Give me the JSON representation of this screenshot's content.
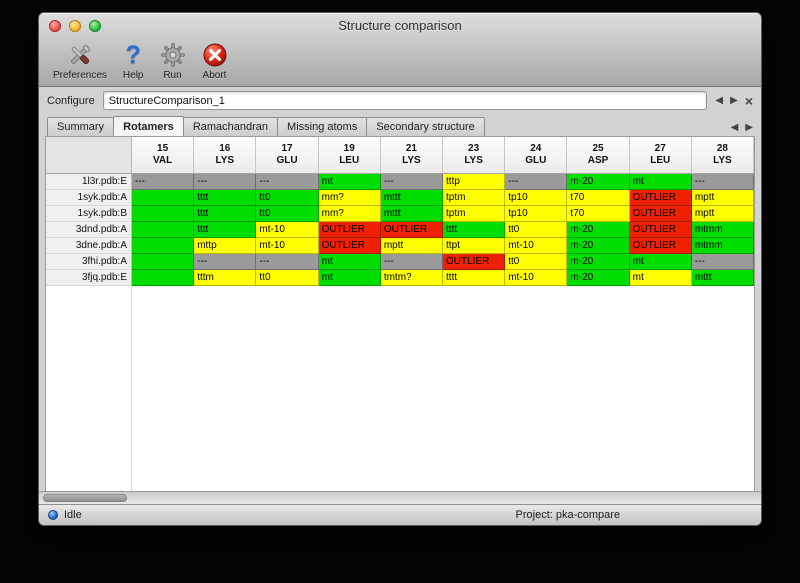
{
  "window": {
    "title": "Structure comparison"
  },
  "toolbar": {
    "items": [
      {
        "label": "Preferences"
      },
      {
        "label": "Help"
      },
      {
        "label": "Run"
      },
      {
        "label": "Abort"
      }
    ]
  },
  "configure": {
    "label": "Configure",
    "value": "StructureComparison_1"
  },
  "nav": {
    "back": "◀",
    "forward": "▶",
    "close": "×"
  },
  "tabs": {
    "items": [
      {
        "label": "Summary",
        "active": false
      },
      {
        "label": "Rotamers",
        "active": true
      },
      {
        "label": "Ramachandran",
        "active": false
      },
      {
        "label": "Missing atoms",
        "active": false
      },
      {
        "label": "Secondary structure",
        "active": false
      }
    ]
  },
  "table": {
    "colors": {
      "green": "#00dd00",
      "yellow": "#ffff00",
      "red": "#ee2200",
      "gray": "#9a9a9a"
    },
    "columns": [
      {
        "num": "15",
        "res": "VAL"
      },
      {
        "num": "16",
        "res": "LYS"
      },
      {
        "num": "17",
        "res": "GLU"
      },
      {
        "num": "19",
        "res": "LEU"
      },
      {
        "num": "21",
        "res": "LYS"
      },
      {
        "num": "23",
        "res": "LYS"
      },
      {
        "num": "24",
        "res": "GLU"
      },
      {
        "num": "25",
        "res": "ASP"
      },
      {
        "num": "27",
        "res": "LEU"
      },
      {
        "num": "28",
        "res": "LYS"
      }
    ],
    "rows": [
      {
        "label": "1l3r.pdb:E",
        "cells": [
          [
            "---",
            "gray"
          ],
          [
            "---",
            "gray"
          ],
          [
            "---",
            "gray"
          ],
          [
            "mt",
            "green"
          ],
          [
            "---",
            "gray"
          ],
          [
            "tttp",
            "yellow"
          ],
          [
            "---",
            "gray"
          ],
          [
            "m-20",
            "green"
          ],
          [
            "mt",
            "green"
          ],
          [
            "---",
            "gray"
          ]
        ]
      },
      {
        "label": "1syk.pdb:A",
        "cells": [
          [
            "",
            "green"
          ],
          [
            "tttt",
            "green"
          ],
          [
            "tt0",
            "green"
          ],
          [
            "mm?",
            "yellow"
          ],
          [
            "mttt",
            "green"
          ],
          [
            "tptm",
            "yellow"
          ],
          [
            "tp10",
            "yellow"
          ],
          [
            "t70",
            "yellow"
          ],
          [
            "OUTLIER",
            "red"
          ],
          [
            "mptt",
            "yellow"
          ]
        ]
      },
      {
        "label": "1syk.pdb:B",
        "cells": [
          [
            "",
            "green"
          ],
          [
            "tttt",
            "green"
          ],
          [
            "tt0",
            "green"
          ],
          [
            "mm?",
            "yellow"
          ],
          [
            "mttt",
            "green"
          ],
          [
            "tptm",
            "yellow"
          ],
          [
            "tp10",
            "yellow"
          ],
          [
            "t70",
            "yellow"
          ],
          [
            "OUTLIER",
            "red"
          ],
          [
            "mptt",
            "yellow"
          ]
        ]
      },
      {
        "label": "3dnd.pdb:A",
        "cells": [
          [
            "",
            "green"
          ],
          [
            "tttt",
            "green"
          ],
          [
            "mt-10",
            "yellow"
          ],
          [
            "OUTLIER",
            "red"
          ],
          [
            "OUTLIER",
            "red"
          ],
          [
            "tttt",
            "green"
          ],
          [
            "tt0",
            "yellow"
          ],
          [
            "m-20",
            "green"
          ],
          [
            "OUTLIER",
            "red"
          ],
          [
            "mtmm",
            "green"
          ]
        ]
      },
      {
        "label": "3dne.pdb:A",
        "cells": [
          [
            "",
            "green"
          ],
          [
            "mttp",
            "yellow"
          ],
          [
            "mt-10",
            "yellow"
          ],
          [
            "OUTLIER",
            "red"
          ],
          [
            "mptt",
            "yellow"
          ],
          [
            "ttpt",
            "yellow"
          ],
          [
            "mt-10",
            "yellow"
          ],
          [
            "m-20",
            "green"
          ],
          [
            "OUTLIER",
            "red"
          ],
          [
            "mtmm",
            "green"
          ]
        ]
      },
      {
        "label": "3fhi.pdb:A",
        "cells": [
          [
            "",
            "green"
          ],
          [
            "---",
            "gray"
          ],
          [
            "---",
            "gray"
          ],
          [
            "mt",
            "green"
          ],
          [
            "---",
            "gray"
          ],
          [
            "OUTLIER",
            "red"
          ],
          [
            "tt0",
            "yellow"
          ],
          [
            "m-20",
            "green"
          ],
          [
            "mt",
            "green"
          ],
          [
            "---",
            "gray"
          ]
        ]
      },
      {
        "label": "3fjq.pdb:E",
        "cells": [
          [
            "",
            "green"
          ],
          [
            "tttm",
            "yellow"
          ],
          [
            "tt0",
            "yellow"
          ],
          [
            "mt",
            "green"
          ],
          [
            "tmtm?",
            "yellow"
          ],
          [
            "tttt",
            "yellow"
          ],
          [
            "mt-10",
            "yellow"
          ],
          [
            "m-20",
            "green"
          ],
          [
            "mt",
            "yellow"
          ],
          [
            "mttt",
            "green"
          ]
        ]
      }
    ]
  },
  "status": {
    "left": "Idle",
    "right": "Project: pka-compare"
  }
}
